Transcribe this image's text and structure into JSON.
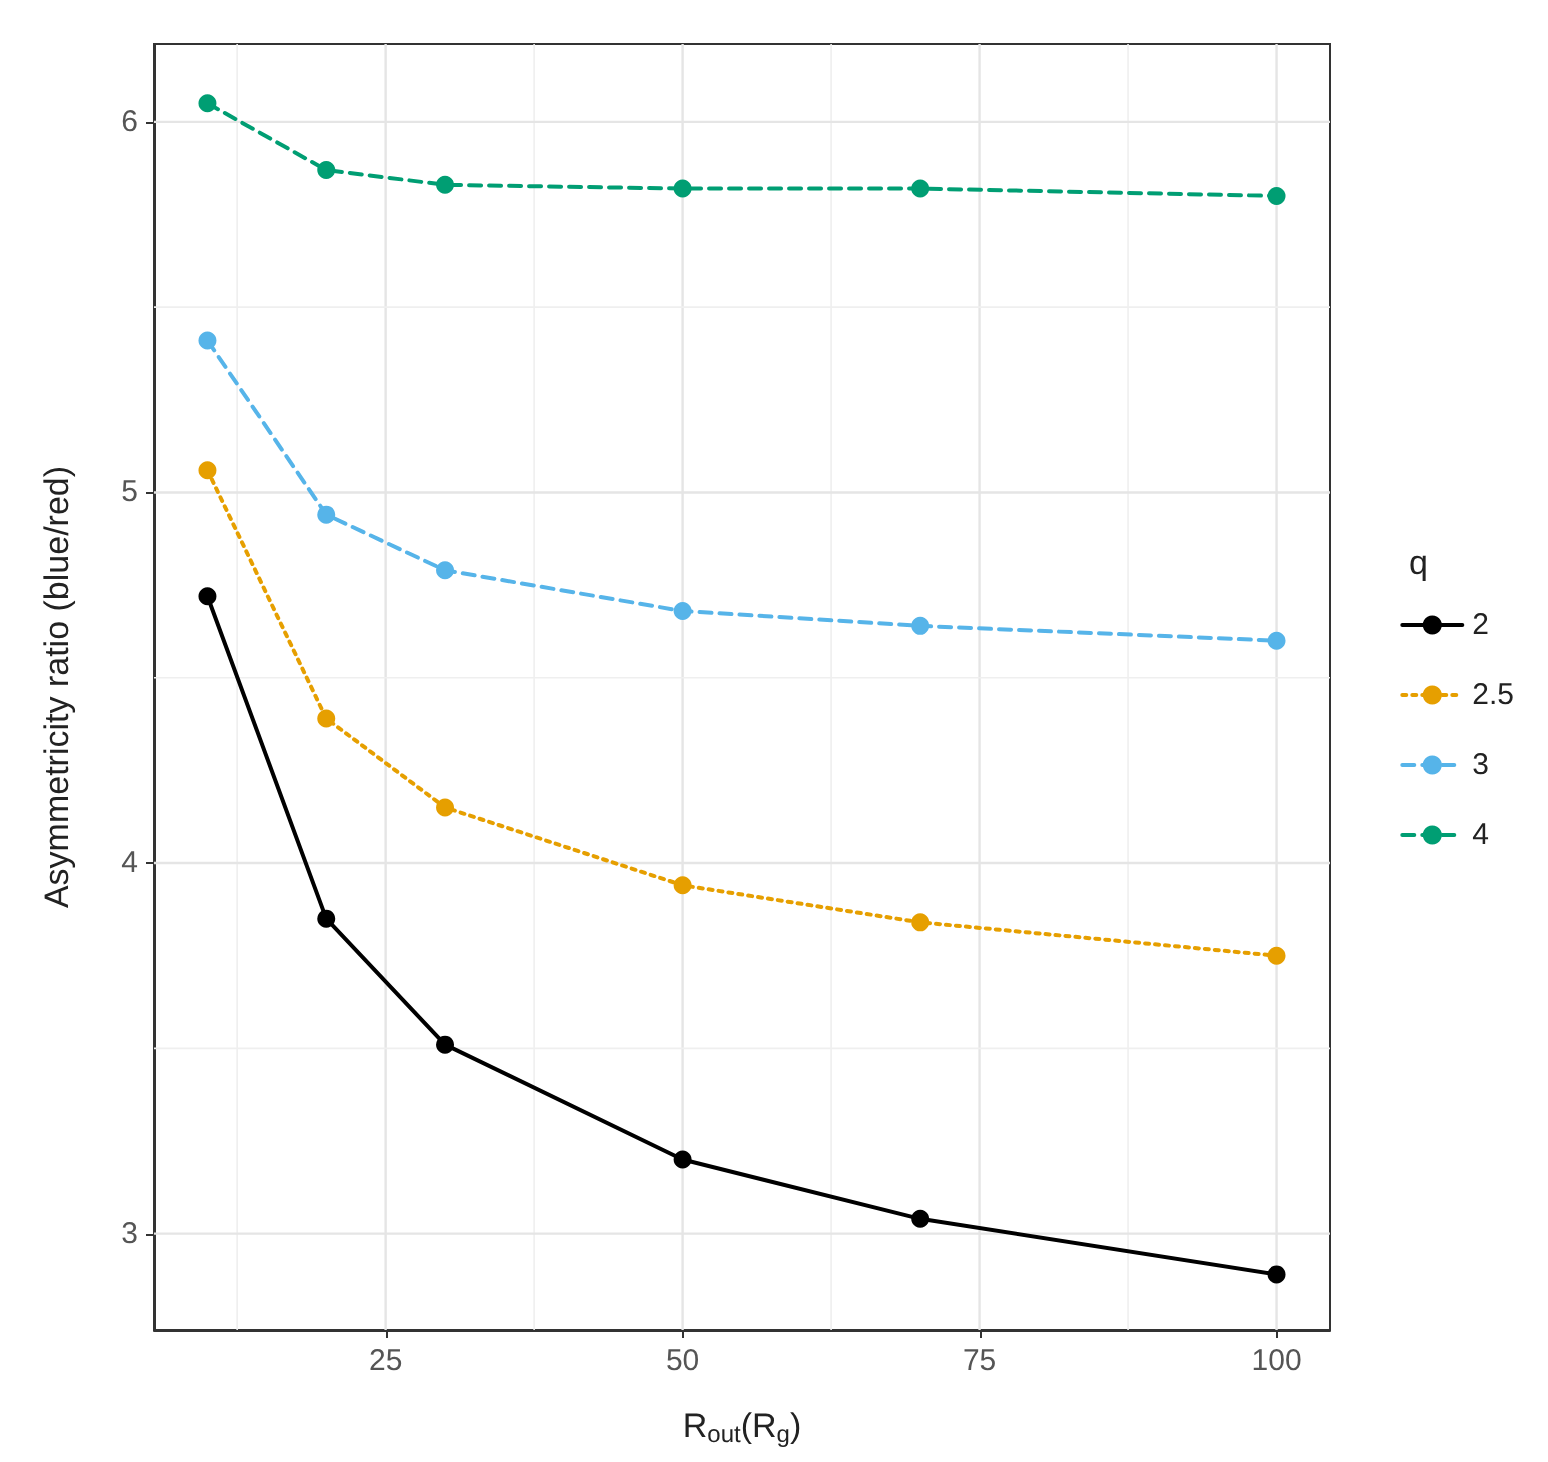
{
  "chart_data": {
    "type": "line",
    "xlabel": "R$_{out}$(R$_{g}$)",
    "ylabel": "Asymmetricity ratio (blue/red)",
    "legend_title": "q",
    "x": [
      10,
      20,
      30,
      50,
      70,
      100
    ],
    "series": [
      {
        "name": "2",
        "color": "#000000",
        "line_style": "solid",
        "values": [
          4.72,
          3.85,
          3.51,
          3.2,
          3.04,
          2.89
        ]
      },
      {
        "name": "2.5",
        "color": "#e69f00",
        "line_style": "dotted",
        "values": [
          5.06,
          4.39,
          4.15,
          3.94,
          3.84,
          3.75
        ]
      },
      {
        "name": "3",
        "color": "#56b4e9",
        "line_style": "dashed",
        "values": [
          5.41,
          4.94,
          4.79,
          4.68,
          4.64,
          4.6
        ]
      },
      {
        "name": "4",
        "color": "#009e73",
        "line_style": "dashed",
        "values": [
          6.05,
          5.87,
          5.83,
          5.82,
          5.82,
          5.8
        ]
      }
    ],
    "xlim": [
      5.5,
      104.5
    ],
    "xticks": [
      25,
      50,
      75,
      100
    ],
    "ylim": [
      2.74,
      6.21
    ],
    "yticks": [
      3,
      4,
      5,
      6
    ],
    "grid": true,
    "legend": "right",
    "marker": "circle"
  }
}
